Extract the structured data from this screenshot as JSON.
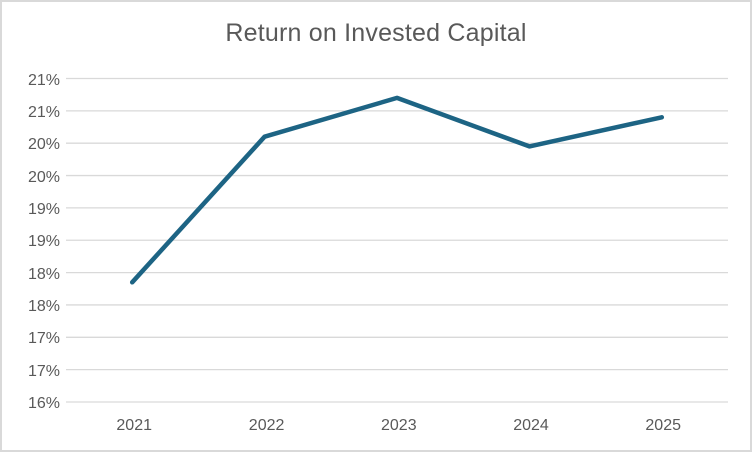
{
  "window": {
    "background_color": "#ffffff",
    "border_color": "#d9d9d9"
  },
  "chart_data": {
    "type": "line",
    "title": "Return on Invested Capital",
    "categories": [
      "2021",
      "2022",
      "2023",
      "2024",
      "2025"
    ],
    "values": [
      17.85,
      20.1,
      20.7,
      19.95,
      20.4
    ],
    "unit": "%",
    "ylim": [
      16,
      21
    ],
    "ytick_step": 0.5,
    "ytick_labels": [
      "21%",
      "21%",
      "20%",
      "20%",
      "19%",
      "19%",
      "18%",
      "18%",
      "17%",
      "17%",
      "16%"
    ],
    "grid": true,
    "legend": "none",
    "colors": {
      "line": "#1d6484",
      "gridline": "#d9d9d9",
      "axis_text": "#595959",
      "title_text": "#595959"
    }
  }
}
